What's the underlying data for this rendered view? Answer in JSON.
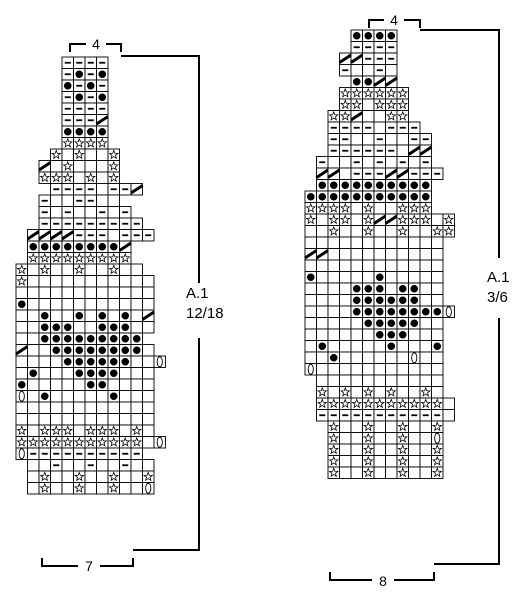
{
  "charts": [
    {
      "id": "left",
      "top_width_label": "4",
      "bottom_width_label": "7",
      "section_label": "A.1",
      "size_label": "12/18",
      "rows": [
        "....----....",
        "....-o-o....",
        "....o-o-....",
        "....-o-o....",
        "....----....",
        "....---/....",
        "....oooo....",
        "....****....",
        "...* *  *...",
        "../ *   *...",
        "..*** * *...",
        "...---- --/.",
        "..-  --  ...",
        "..- -  - -..",
        "..---------.",
        ".////--- ---.",
        ".oooooooo/..",
        ".*********..",
        "* *  *  *  ..",
        "*           .",
        "            .",
        "o           .",
        "  o  o o o /.",
        "  ooo  ooo  .",
        "  ooooooooo..",
        "/  oooooooo ..",
        "    oooooo  q",
        " o   oooo   .",
        "o     oo    .",
        "q o     o   .",
        "            .",
        "            .",
        "* *** *** * .",
        "*********** q",
        "q----------..",
        ".  -  -  -  .",
        ". *  *  *  *.",
        ". *  *  *  q."
      ],
      "rows_note": "grid symbols: . empty  - dash  o filled  * star  / slash  q oval"
    },
    {
      "id": "right",
      "top_width_label": "4",
      "bottom_width_label": "8",
      "section_label": "A.1",
      "size_label": "3/6"
    }
  ],
  "legend_symbols": [
    "empty",
    "dash",
    "filled-circle",
    "star",
    "slash",
    "oval"
  ]
}
